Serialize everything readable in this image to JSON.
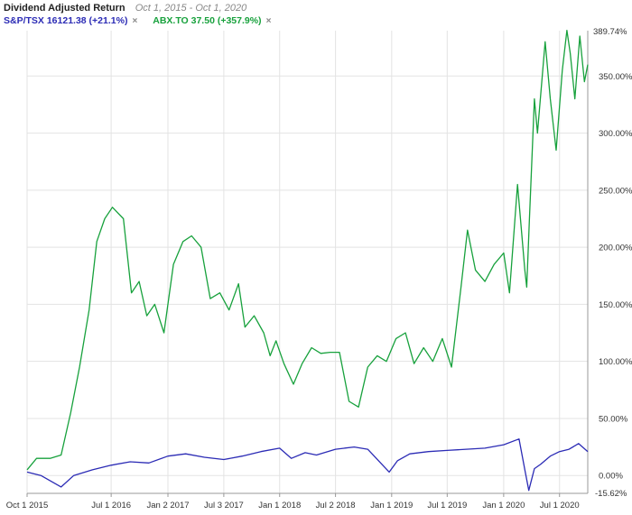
{
  "header": {
    "title": "Dividend Adjusted Return",
    "date_range": "Oct 1, 2015 - Oct 1, 2020"
  },
  "legend": [
    {
      "label": "S&P/TSX 16121.38 (+21.1%)",
      "color": "#2b2bb5",
      "remove_icon": "close-icon",
      "remove_glyph": "×"
    },
    {
      "label": "ABX.TO 37.50 (+357.9%)",
      "color": "#17a13c",
      "remove_icon": "close-icon",
      "remove_glyph": "×"
    }
  ],
  "chart_data": {
    "type": "line",
    "x_axis": {
      "range": [
        "2015-10-01",
        "2020-10-01"
      ],
      "tick_labels": [
        "Oct 1 2015",
        "Jul 1 2016",
        "Jan 2 2017",
        "Jul 3 2017",
        "Jan 1 2018",
        "Jul 2 2018",
        "Jan 1 2019",
        "Jul 1 2019",
        "Jan 1 2020",
        "Jul 1 2020"
      ],
      "tick_dates": [
        "2015-10-01",
        "2016-07-01",
        "2017-01-02",
        "2017-07-03",
        "2018-01-01",
        "2018-07-02",
        "2019-01-01",
        "2019-07-01",
        "2020-01-01",
        "2020-07-01"
      ]
    },
    "y_axis": {
      "unit": "%",
      "ylim": [
        -15.62,
        389.74
      ],
      "tick_labels": [
        "0.00%",
        "50.00%",
        "100.00%",
        "150.00%",
        "200.00%",
        "250.00%",
        "300.00%",
        "350.00%"
      ],
      "tick_values": [
        0,
        50,
        100,
        150,
        200,
        250,
        300,
        350
      ],
      "max_label": "389.74%",
      "min_label": "-15.62%",
      "position": "right"
    },
    "grid": true,
    "legend_position": "top-left",
    "series": [
      {
        "name": "S&P/TSX",
        "color": "#2b2bb5",
        "x": [
          "2015-10-01",
          "2015-11-15",
          "2016-01-20",
          "2016-03-01",
          "2016-05-01",
          "2016-07-01",
          "2016-09-01",
          "2016-11-01",
          "2017-01-02",
          "2017-03-01",
          "2017-05-01",
          "2017-07-03",
          "2017-09-01",
          "2017-11-01",
          "2018-01-01",
          "2018-02-08",
          "2018-03-25",
          "2018-05-01",
          "2018-07-02",
          "2018-09-01",
          "2018-10-15",
          "2018-12-24",
          "2019-01-20",
          "2019-03-01",
          "2019-05-01",
          "2019-07-01",
          "2019-09-01",
          "2019-11-01",
          "2020-01-01",
          "2020-02-20",
          "2020-03-10",
          "2020-03-23",
          "2020-04-10",
          "2020-05-01",
          "2020-06-01",
          "2020-07-01",
          "2020-08-01",
          "2020-09-01",
          "2020-10-01"
        ],
        "y": [
          3,
          0,
          -10,
          0,
          5,
          9,
          12,
          11,
          17,
          19,
          16,
          14,
          17,
          21,
          24,
          15,
          20,
          18,
          23,
          25,
          23,
          3,
          13,
          19,
          21,
          22,
          23,
          24,
          27,
          32,
          5,
          -13,
          6,
          10,
          17,
          21,
          23,
          28,
          21
        ]
      },
      {
        "name": "ABX.TO",
        "color": "#17a13c",
        "x": [
          "2015-10-01",
          "2015-11-01",
          "2015-12-15",
          "2016-01-20",
          "2016-02-20",
          "2016-03-20",
          "2016-04-20",
          "2016-05-15",
          "2016-06-10",
          "2016-07-05",
          "2016-08-10",
          "2016-09-05",
          "2016-09-30",
          "2016-10-25",
          "2016-11-20",
          "2016-12-20",
          "2017-01-20",
          "2017-02-20",
          "2017-03-20",
          "2017-04-20",
          "2017-05-20",
          "2017-06-20",
          "2017-07-20",
          "2017-08-20",
          "2017-09-10",
          "2017-10-10",
          "2017-11-10",
          "2017-12-01",
          "2017-12-20",
          "2018-01-15",
          "2018-02-15",
          "2018-03-15",
          "2018-04-15",
          "2018-05-15",
          "2018-06-15",
          "2018-07-15",
          "2018-08-15",
          "2018-09-15",
          "2018-10-15",
          "2018-11-15",
          "2018-12-15",
          "2019-01-15",
          "2019-02-15",
          "2019-03-15",
          "2019-04-15",
          "2019-05-15",
          "2019-06-15",
          "2019-07-15",
          "2019-08-15",
          "2019-09-05",
          "2019-10-01",
          "2019-11-01",
          "2019-12-01",
          "2020-01-01",
          "2020-01-20",
          "2020-02-15",
          "2020-03-10",
          "2020-03-16",
          "2020-03-25",
          "2020-04-10",
          "2020-04-20",
          "2020-05-15",
          "2020-06-01",
          "2020-06-20",
          "2020-07-10",
          "2020-07-25",
          "2020-08-05",
          "2020-08-20",
          "2020-09-05",
          "2020-09-20",
          "2020-10-01"
        ],
        "y": [
          5,
          15,
          15,
          18,
          55,
          95,
          145,
          205,
          225,
          235,
          225,
          160,
          170,
          140,
          150,
          125,
          185,
          205,
          210,
          200,
          155,
          160,
          145,
          168,
          130,
          140,
          125,
          105,
          118,
          98,
          80,
          98,
          112,
          107,
          108,
          108,
          65,
          60,
          95,
          105,
          100,
          120,
          125,
          98,
          112,
          100,
          120,
          95,
          165,
          215,
          180,
          170,
          185,
          195,
          160,
          255,
          180,
          165,
          225,
          330,
          300,
          380,
          330,
          285,
          355,
          390,
          370,
          330,
          385,
          345,
          360
        ]
      }
    ]
  }
}
